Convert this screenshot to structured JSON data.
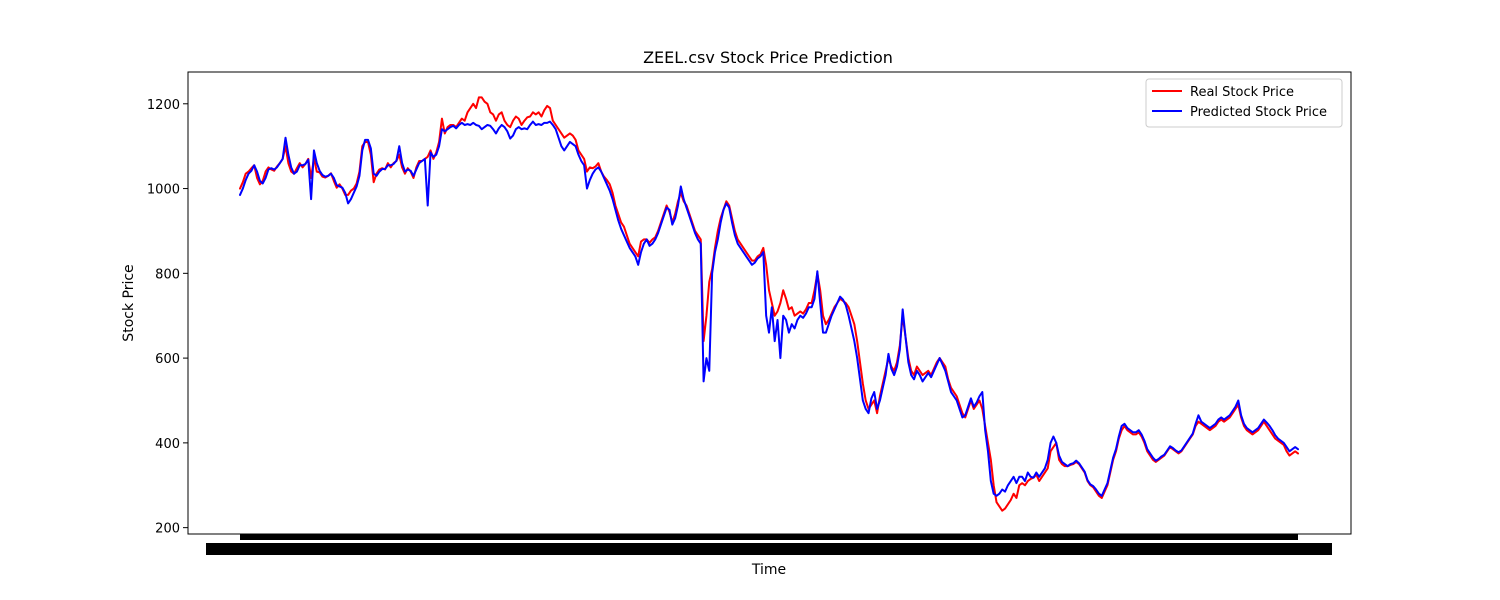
{
  "chart_data": {
    "type": "line",
    "title": "ZEEL.csv Stock Price Prediction",
    "xlabel": "Time",
    "ylabel": "Stock Price",
    "ylim": [
      185,
      1275
    ],
    "yticks": [
      200,
      400,
      600,
      800,
      1000,
      1200
    ],
    "grid": false,
    "legend_position": "top-right",
    "colors": {
      "real": "#ff0000",
      "predicted": "#0000ff"
    },
    "series": [
      {
        "name": "Real Stock Price",
        "key": "real",
        "values": [
          1000,
          1015,
          1035,
          1040,
          1048,
          1055,
          1025,
          1010,
          1018,
          1040,
          1050,
          1045,
          1042,
          1052,
          1060,
          1070,
          1100,
          1060,
          1040,
          1035,
          1048,
          1060,
          1050,
          1058,
          1070,
          1025,
          1072,
          1040,
          1038,
          1028,
          1026,
          1030,
          1036,
          1018,
          1002,
          1010,
          1000,
          985,
          985,
          995,
          1000,
          1012,
          1040,
          1100,
          1110,
          1110,
          1080,
          1015,
          1035,
          1045,
          1048,
          1045,
          1060,
          1050,
          1060,
          1065,
          1080,
          1050,
          1035,
          1048,
          1040,
          1025,
          1050,
          1065,
          1065,
          1070,
          1075,
          1090,
          1070,
          1085,
          1110,
          1165,
          1130,
          1145,
          1150,
          1150,
          1145,
          1155,
          1165,
          1160,
          1180,
          1190,
          1200,
          1190,
          1215,
          1215,
          1205,
          1200,
          1180,
          1175,
          1160,
          1175,
          1180,
          1160,
          1150,
          1145,
          1160,
          1170,
          1165,
          1150,
          1160,
          1168,
          1170,
          1180,
          1175,
          1180,
          1170,
          1185,
          1195,
          1190,
          1160,
          1150,
          1140,
          1130,
          1120,
          1125,
          1130,
          1125,
          1115,
          1090,
          1080,
          1070,
          1040,
          1050,
          1048,
          1052,
          1060,
          1040,
          1028,
          1020,
          1010,
          990,
          960,
          940,
          920,
          910,
          890,
          870,
          860,
          850,
          840,
          875,
          880,
          880,
          872,
          880,
          885,
          900,
          920,
          940,
          960,
          945,
          920,
          940,
          970,
          990,
          970,
          960,
          940,
          920,
          900,
          890,
          880,
          640,
          700,
          780,
          810,
          860,
          900,
          930,
          950,
          970,
          960,
          930,
          900,
          880,
          870,
          860,
          850,
          840,
          830,
          830,
          840,
          845,
          860,
          820,
          760,
          730,
          700,
          710,
          730,
          760,
          740,
          715,
          720,
          700,
          705,
          710,
          705,
          715,
          730,
          730,
          760,
          800,
          760,
          700,
          680,
          690,
          705,
          720,
          730,
          740,
          735,
          730,
          720,
          700,
          680,
          640,
          590,
          540,
          500,
          480,
          490,
          500,
          470,
          510,
          540,
          570,
          600,
          580,
          570,
          590,
          630,
          700,
          650,
          600,
          570,
          560,
          580,
          570,
          560,
          565,
          570,
          560,
          575,
          590,
          600,
          590,
          580,
          550,
          530,
          520,
          510,
          490,
          470,
          460,
          480,
          500,
          480,
          490,
          500,
          480,
          440,
          400,
          360,
          300,
          260,
          250,
          240,
          245,
          255,
          265,
          280,
          270,
          300,
          305,
          300,
          310,
          315,
          318,
          325,
          310,
          320,
          330,
          340,
          380,
          390,
          400,
          360,
          350,
          345,
          345,
          348,
          350,
          355,
          350,
          340,
          330,
          310,
          300,
          295,
          285,
          275,
          270,
          285,
          300,
          330,
          360,
          380,
          410,
          430,
          440,
          430,
          425,
          420,
          420,
          425,
          415,
          400,
          380,
          370,
          360,
          355,
          360,
          365,
          370,
          380,
          390,
          385,
          380,
          375,
          380,
          390,
          400,
          410,
          420,
          440,
          450,
          445,
          440,
          435,
          430,
          435,
          440,
          450,
          455,
          450,
          455,
          460,
          470,
          480,
          490,
          460,
          440,
          430,
          425,
          420,
          425,
          430,
          440,
          450,
          440,
          430,
          420,
          410,
          405,
          400,
          395,
          380,
          370,
          375,
          380,
          375
        ]
      },
      {
        "name": "Predicted Stock Price",
        "key": "predicted",
        "values": [
          985,
          1000,
          1020,
          1035,
          1042,
          1055,
          1040,
          1018,
          1012,
          1025,
          1045,
          1048,
          1045,
          1050,
          1060,
          1070,
          1120,
          1080,
          1050,
          1035,
          1040,
          1055,
          1055,
          1058,
          1068,
          975,
          1090,
          1060,
          1042,
          1032,
          1028,
          1030,
          1035,
          1025,
          1008,
          1005,
          1002,
          990,
          965,
          975,
          990,
          1005,
          1030,
          1090,
          1115,
          1115,
          1095,
          1035,
          1030,
          1040,
          1046,
          1046,
          1055,
          1055,
          1058,
          1066,
          1100,
          1060,
          1040,
          1045,
          1042,
          1030,
          1045,
          1060,
          1065,
          1070,
          960,
          1085,
          1075,
          1080,
          1100,
          1140,
          1135,
          1140,
          1145,
          1148,
          1142,
          1150,
          1155,
          1150,
          1152,
          1150,
          1155,
          1150,
          1148,
          1140,
          1145,
          1150,
          1148,
          1140,
          1130,
          1142,
          1150,
          1145,
          1135,
          1118,
          1125,
          1140,
          1145,
          1140,
          1142,
          1140,
          1150,
          1158,
          1150,
          1152,
          1150,
          1155,
          1155,
          1158,
          1150,
          1140,
          1120,
          1100,
          1090,
          1100,
          1110,
          1105,
          1100,
          1080,
          1065,
          1055,
          1000,
          1020,
          1035,
          1045,
          1050,
          1040,
          1025,
          1010,
          995,
          975,
          950,
          925,
          905,
          890,
          875,
          860,
          850,
          840,
          820,
          850,
          870,
          880,
          865,
          870,
          880,
          895,
          915,
          935,
          955,
          950,
          915,
          930,
          960,
          1005,
          975,
          955,
          935,
          915,
          895,
          880,
          870,
          545,
          600,
          570,
          800,
          850,
          880,
          920,
          950,
          965,
          955,
          920,
          890,
          870,
          860,
          850,
          840,
          830,
          820,
          825,
          835,
          840,
          850,
          700,
          660,
          720,
          640,
          690,
          600,
          700,
          690,
          660,
          680,
          670,
          690,
          700,
          695,
          705,
          720,
          720,
          740,
          805,
          730,
          660,
          660,
          680,
          700,
          715,
          730,
          745,
          738,
          725,
          700,
          670,
          640,
          600,
          550,
          500,
          480,
          470,
          505,
          520,
          480,
          500,
          530,
          560,
          610,
          575,
          560,
          580,
          620,
          715,
          650,
          590,
          560,
          550,
          570,
          560,
          545,
          555,
          565,
          555,
          570,
          585,
          600,
          585,
          570,
          545,
          520,
          510,
          500,
          480,
          460,
          465,
          485,
          505,
          485,
          495,
          510,
          520,
          430,
          380,
          310,
          280,
          275,
          280,
          290,
          285,
          300,
          310,
          320,
          305,
          320,
          320,
          310,
          330,
          320,
          318,
          330,
          320,
          330,
          340,
          360,
          400,
          415,
          400,
          370,
          355,
          350,
          345,
          350,
          352,
          358,
          352,
          342,
          332,
          312,
          302,
          298,
          290,
          280,
          275,
          290,
          305,
          335,
          365,
          385,
          415,
          440,
          445,
          435,
          430,
          425,
          425,
          430,
          420,
          405,
          385,
          375,
          365,
          358,
          362,
          368,
          372,
          382,
          392,
          388,
          382,
          378,
          382,
          392,
          402,
          412,
          422,
          445,
          465,
          450,
          445,
          440,
          435,
          440,
          445,
          455,
          460,
          455,
          460,
          465,
          475,
          485,
          500,
          465,
          445,
          435,
          430,
          425,
          430,
          435,
          445,
          455,
          448,
          440,
          430,
          418,
          410,
          405,
          400,
          390,
          380,
          385,
          390,
          385
        ]
      }
    ]
  }
}
